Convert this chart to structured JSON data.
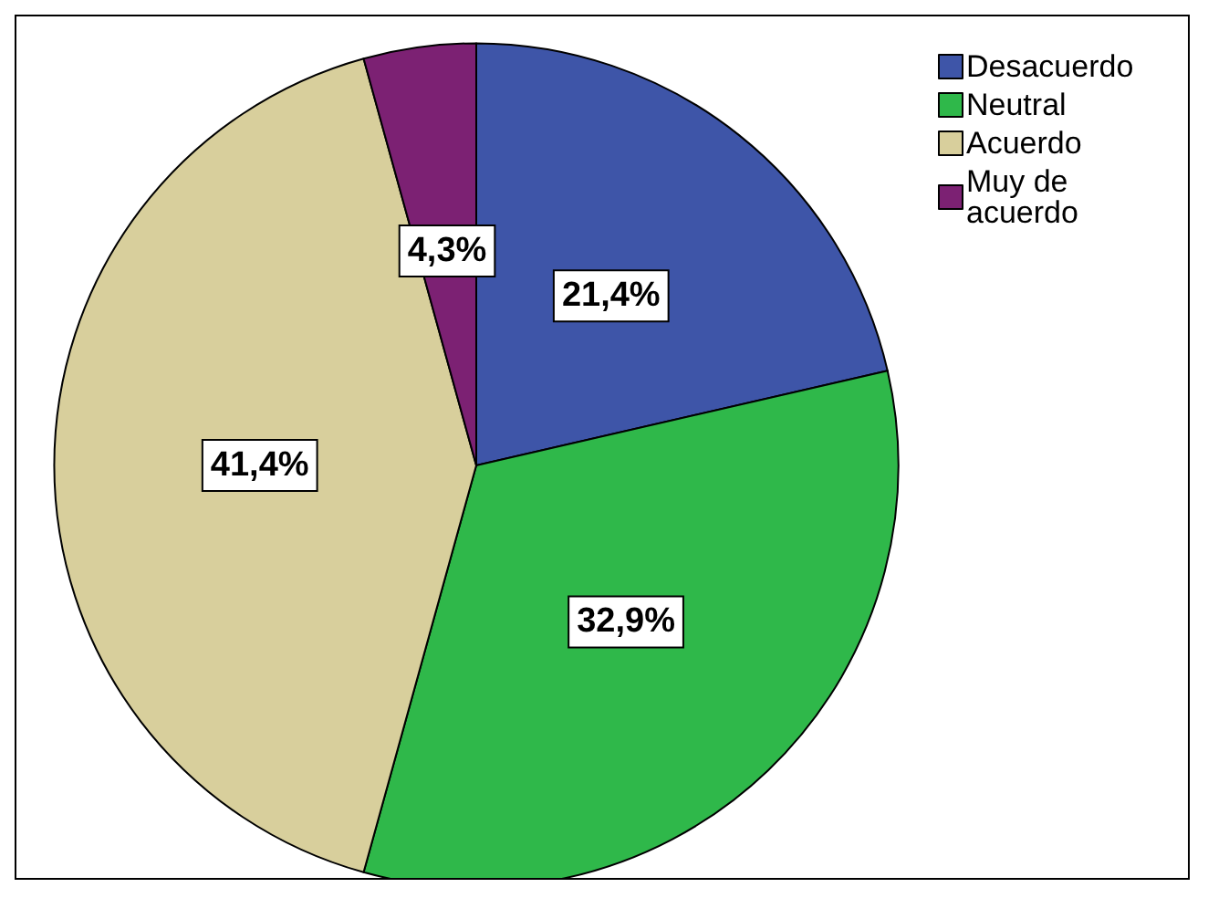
{
  "chart_data": {
    "type": "pie",
    "categories": [
      "Desacuerdo",
      "Neutral",
      "Acuerdo",
      "Muy de acuerdo"
    ],
    "values": [
      21.4,
      32.9,
      41.4,
      4.3
    ],
    "colors": [
      "#3e55a8",
      "#2fb84a",
      "#d8cf9c",
      "#7c2173"
    ],
    "value_labels": [
      "21,4%",
      "32,9%",
      "41,4%",
      "4,3%"
    ],
    "legend": "top right"
  }
}
